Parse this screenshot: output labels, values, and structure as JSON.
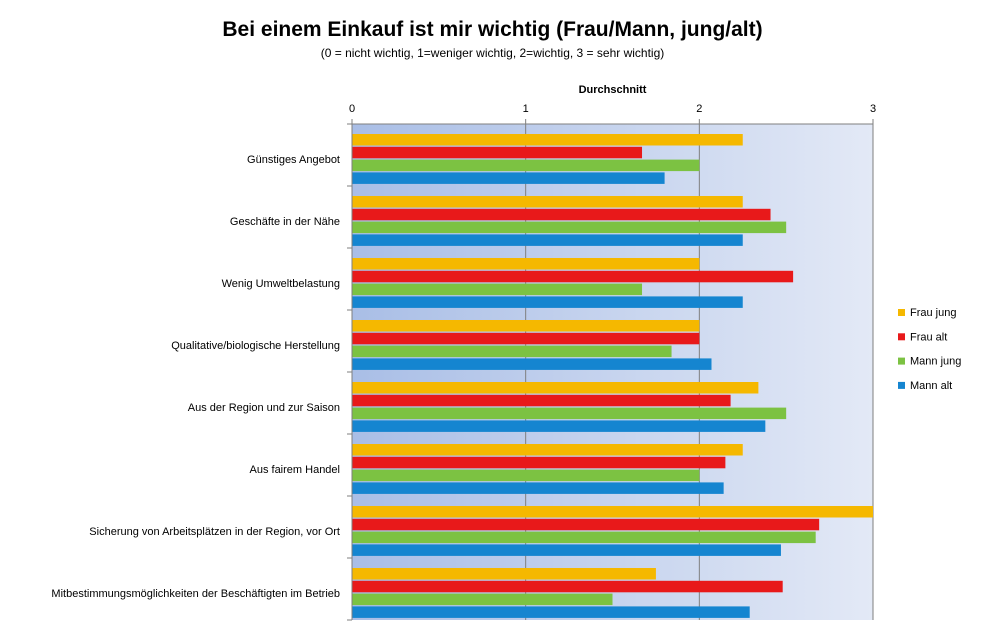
{
  "chart_data": {
    "type": "bar",
    "orientation": "horizontal",
    "title": "Bei einem Einkauf ist mir wichtig (Frau/Mann, jung/alt)",
    "subtitle": "(0 = nicht wichtig, 1=weniger wichtig, 2=wichtig, 3 = sehr wichtig)",
    "xlabel": "Durchschnitt",
    "xlim": [
      0,
      3
    ],
    "xticks": [
      "0",
      "1",
      "2",
      "3"
    ],
    "grid": true,
    "legend": "right",
    "categories": [
      "Günstiges Angebot",
      "Geschäfte in der Nähe",
      "Wenig Umweltbelastung",
      "Qualitative/biologische Herstellung",
      "Aus der Region und zur Saison",
      "Aus fairem Handel",
      "Sicherung von Arbeitsplätzen in der Region,  vor Ort",
      "Mitbestimmungsmöglichkeiten der Beschäftigten im Betrieb"
    ],
    "series": [
      {
        "name": "Frau jung",
        "color": "#F5B800",
        "values": [
          2.25,
          2.25,
          2.0,
          2.0,
          2.34,
          2.25,
          3.0,
          1.75
        ]
      },
      {
        "name": "Frau alt",
        "color": "#E8191A",
        "values": [
          1.67,
          2.41,
          2.54,
          2.0,
          2.18,
          2.15,
          2.69,
          2.48
        ]
      },
      {
        "name": "Mann jung",
        "color": "#7CC242",
        "values": [
          2.0,
          2.5,
          1.67,
          1.84,
          2.5,
          2.0,
          2.67,
          1.5
        ]
      },
      {
        "name": "Mann alt",
        "color": "#1585D0",
        "values": [
          1.8,
          2.25,
          2.25,
          2.07,
          2.38,
          2.14,
          2.47,
          2.29
        ]
      }
    ]
  }
}
